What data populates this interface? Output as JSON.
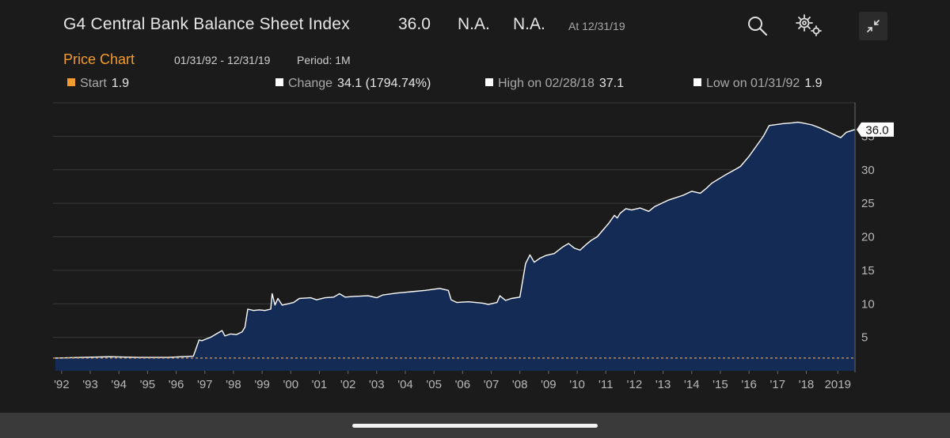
{
  "header": {
    "title": "G4 Central Bank Balance Sheet Index",
    "last_value": "36.0",
    "change_field": "N.A.",
    "pct_field": "N.A.",
    "as_of": "At 12/31/19",
    "icons": [
      "search-icon",
      "settings-icon",
      "collapse-icon"
    ]
  },
  "subheader": {
    "chart_name": "Price Chart",
    "date_range": "01/31/92 - 12/31/19",
    "period": "Period: 1M"
  },
  "stats": {
    "start_label": "Start",
    "start_value": "1.9",
    "change_label": "Change",
    "change_value": "34.1 (1794.74%)",
    "high_label": "High on 02/28/18",
    "high_value": "37.1",
    "low_label": "Low on 01/31/92",
    "low_value": "1.9"
  },
  "colors": {
    "accent": "#f39b2e",
    "line": "#ffffff",
    "fill": "#142b55",
    "background": "#1b1b1b"
  },
  "chart_data": {
    "type": "area",
    "title": "G4 Central Bank Balance Sheet Index",
    "xlabel": "",
    "ylabel": "",
    "xlim": [
      1992.0,
      2020.0
    ],
    "ylim": [
      0,
      40
    ],
    "y_ticks": [
      5,
      10,
      15,
      20,
      25,
      30,
      35
    ],
    "x_ticks": [
      {
        "x": 1992.3,
        "label": "'92"
      },
      {
        "x": 1993.3,
        "label": "'93"
      },
      {
        "x": 1994.3,
        "label": "'94"
      },
      {
        "x": 1995.3,
        "label": "'95"
      },
      {
        "x": 1996.3,
        "label": "'96"
      },
      {
        "x": 1997.3,
        "label": "'97"
      },
      {
        "x": 1998.3,
        "label": "'98"
      },
      {
        "x": 1999.3,
        "label": "'99"
      },
      {
        "x": 2000.3,
        "label": "'00"
      },
      {
        "x": 2001.3,
        "label": "'01"
      },
      {
        "x": 2002.3,
        "label": "'02"
      },
      {
        "x": 2003.3,
        "label": "'03"
      },
      {
        "x": 2004.3,
        "label": "'04"
      },
      {
        "x": 2005.3,
        "label": "'05"
      },
      {
        "x": 2006.3,
        "label": "'06"
      },
      {
        "x": 2007.3,
        "label": "'07"
      },
      {
        "x": 2008.3,
        "label": "'08"
      },
      {
        "x": 2009.3,
        "label": "'09"
      },
      {
        "x": 2010.3,
        "label": "'10"
      },
      {
        "x": 2011.3,
        "label": "'11"
      },
      {
        "x": 2012.3,
        "label": "'12"
      },
      {
        "x": 2013.3,
        "label": "'13"
      },
      {
        "x": 2014.3,
        "label": "'14"
      },
      {
        "x": 2015.3,
        "label": "'15"
      },
      {
        "x": 2016.3,
        "label": "'16"
      },
      {
        "x": 2017.3,
        "label": "'17"
      },
      {
        "x": 2018.3,
        "label": "'18"
      },
      {
        "x": 2019.4,
        "label": "2019"
      }
    ],
    "baseline": {
      "value": 1.9,
      "label": "Start"
    },
    "last_label": "36.0",
    "series": [
      {
        "name": "G4 Central Bank Balance Sheet Index",
        "x": [
          1992.08,
          1993.0,
          1994.0,
          1995.0,
          1996.0,
          1996.9,
          1997.1,
          1997.2,
          1997.5,
          1997.7,
          1997.9,
          1998.0,
          1998.2,
          1998.4,
          1998.6,
          1998.7,
          1998.8,
          1999.0,
          1999.2,
          1999.4,
          1999.6,
          1999.65,
          1999.75,
          1999.85,
          2000.0,
          2000.2,
          2000.4,
          2000.6,
          2001.0,
          2001.2,
          2001.5,
          2001.8,
          2002.0,
          2002.2,
          2002.5,
          2003.0,
          2003.3,
          2003.5,
          2004.0,
          2004.5,
          2005.0,
          2005.5,
          2005.8,
          2005.9,
          2006.1,
          2006.5,
          2007.0,
          2007.2,
          2007.5,
          2007.6,
          2007.8,
          2008.0,
          2008.3,
          2008.5,
          2008.65,
          2008.8,
          2008.9,
          2009.0,
          2009.2,
          2009.5,
          2009.8,
          2010.0,
          2010.2,
          2010.4,
          2010.6,
          2010.8,
          2011.0,
          2011.2,
          2011.4,
          2011.6,
          2011.7,
          2011.8,
          2012.0,
          2012.2,
          2012.5,
          2012.8,
          2013.0,
          2013.5,
          2014.0,
          2014.3,
          2014.6,
          2014.8,
          2015.0,
          2015.5,
          2015.8,
          2016.0,
          2016.3,
          2016.6,
          2016.8,
          2017.0,
          2017.5,
          2017.8,
          2018.0,
          2018.16,
          2018.5,
          2018.8,
          2019.0,
          2019.3,
          2019.5,
          2019.7,
          2019.99
        ],
        "values": [
          1.9,
          2.0,
          2.1,
          2.0,
          2.0,
          2.2,
          4.6,
          4.5,
          5.0,
          5.5,
          6.0,
          5.2,
          5.5,
          5.4,
          5.8,
          6.5,
          9.2,
          9.0,
          9.1,
          9.0,
          9.2,
          11.5,
          9.8,
          10.8,
          9.8,
          10.0,
          10.2,
          10.8,
          10.9,
          10.6,
          10.9,
          11.0,
          11.5,
          11.0,
          11.1,
          11.2,
          10.9,
          11.3,
          11.6,
          11.8,
          12.0,
          12.3,
          12.0,
          10.6,
          10.2,
          10.3,
          10.1,
          9.9,
          10.2,
          11.2,
          10.5,
          10.8,
          11.0,
          16.0,
          17.3,
          16.2,
          16.5,
          16.8,
          17.2,
          17.5,
          18.5,
          19.0,
          18.3,
          18.0,
          18.8,
          19.5,
          20.0,
          21.0,
          22.0,
          23.2,
          22.8,
          23.5,
          24.2,
          24.0,
          24.3,
          23.8,
          24.5,
          25.5,
          26.2,
          26.8,
          26.5,
          27.2,
          28.0,
          29.3,
          30.0,
          30.5,
          32.0,
          33.8,
          35.0,
          36.6,
          36.9,
          37.0,
          37.1,
          37.0,
          36.7,
          36.2,
          35.8,
          35.2,
          34.8,
          35.6,
          36.0
        ]
      }
    ]
  }
}
